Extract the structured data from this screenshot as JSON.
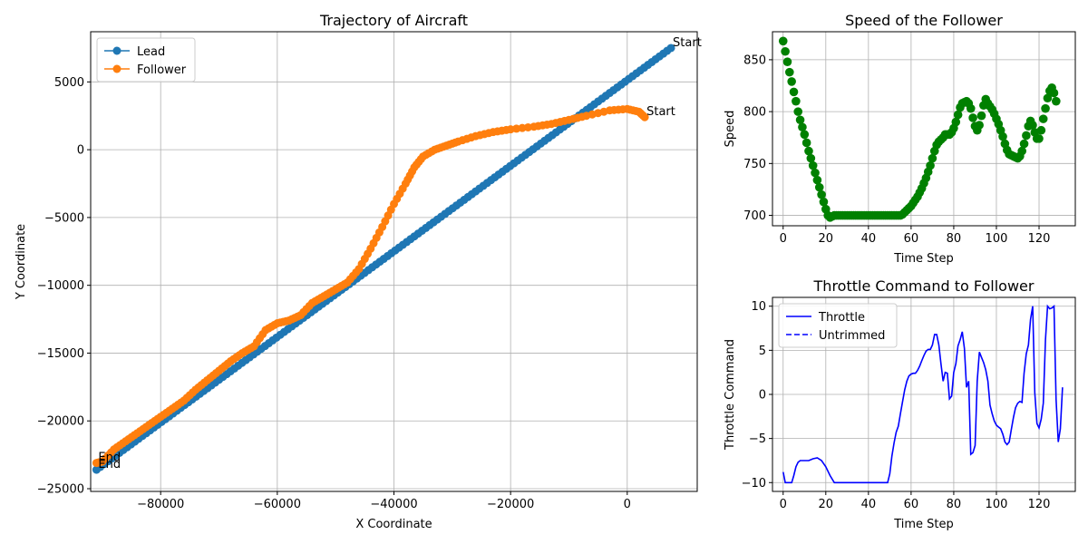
{
  "chart_data": [
    {
      "type": "line",
      "title": "Trajectory of Aircraft",
      "xlabel": "X Coordinate",
      "ylabel": "Y Coordinate",
      "xlim": [
        -92000,
        12000
      ],
      "ylim": [
        -25200,
        8700
      ],
      "x_ticks": [
        -80000,
        -60000,
        -40000,
        -20000,
        0
      ],
      "x_tick_labels": [
        "−80000",
        "−60000",
        "−40000",
        "−20000",
        "0"
      ],
      "y_ticks": [
        -25000,
        -20000,
        -15000,
        -10000,
        -5000,
        0,
        5000
      ],
      "y_tick_labels": [
        "−25000",
        "−20000",
        "−15000",
        "−10000",
        "−5000",
        "0",
        "5000"
      ],
      "grid": true,
      "legend": "top-left",
      "series": [
        {
          "name": "Lead",
          "color": "#1f77b4",
          "marker": "circle",
          "points": [
            [
              7500,
              7500
            ],
            [
              -91000,
              -23600
            ]
          ]
        },
        {
          "name": "Follower",
          "color": "#ff7f0e",
          "marker": "circle",
          "points": [
            [
              3000,
              2400
            ],
            [
              2000,
              2800
            ],
            [
              0,
              3000
            ],
            [
              -3000,
              2900
            ],
            [
              -7000,
              2500
            ],
            [
              -10000,
              2200
            ],
            [
              -13000,
              1900
            ],
            [
              -16000,
              1700
            ],
            [
              -20000,
              1500
            ],
            [
              -23000,
              1300
            ],
            [
              -26000,
              1000
            ],
            [
              -29000,
              600
            ],
            [
              -31000,
              300
            ],
            [
              -33000,
              0
            ],
            [
              -35000,
              -500
            ],
            [
              -36500,
              -1300
            ],
            [
              -38000,
              -2500
            ],
            [
              -40000,
              -4000
            ],
            [
              -42000,
              -5700
            ],
            [
              -44000,
              -7300
            ],
            [
              -46000,
              -8800
            ],
            [
              -48000,
              -9800
            ],
            [
              -50000,
              -10300
            ],
            [
              -52000,
              -10800
            ],
            [
              -54000,
              -11300
            ],
            [
              -56000,
              -12200
            ],
            [
              -58000,
              -12600
            ],
            [
              -60000,
              -12800
            ],
            [
              -62000,
              -13300
            ],
            [
              -64000,
              -14500
            ],
            [
              -66000,
              -15000
            ],
            [
              -68000,
              -15600
            ],
            [
              -70000,
              -16300
            ],
            [
              -72000,
              -17000
            ],
            [
              -74000,
              -17700
            ],
            [
              -76000,
              -18500
            ],
            [
              -78000,
              -19100
            ],
            [
              -80000,
              -19700
            ],
            [
              -82000,
              -20300
            ],
            [
              -84000,
              -20900
            ],
            [
              -86000,
              -21500
            ],
            [
              -88000,
              -22100
            ],
            [
              -90000,
              -23000
            ],
            [
              -91000,
              -23100
            ]
          ]
        }
      ],
      "annotations": [
        {
          "text": "Start",
          "x": 7500,
          "y": 7500
        },
        {
          "text": "Start",
          "x": 3000,
          "y": 2400
        },
        {
          "text": "End",
          "x": -91000,
          "y": -23100
        },
        {
          "text": "End",
          "x": -91000,
          "y": -23600
        }
      ]
    },
    {
      "type": "scatter",
      "title": "Speed of the Follower",
      "xlabel": "Time Step",
      "ylabel": "Speed",
      "xlim": [
        -5,
        137
      ],
      "ylim": [
        690,
        877
      ],
      "x_ticks": [
        0,
        20,
        40,
        60,
        80,
        100,
        120
      ],
      "y_ticks": [
        700,
        750,
        800,
        850
      ],
      "grid": true,
      "color": "#008000",
      "points": [
        [
          0,
          868
        ],
        [
          1,
          858
        ],
        [
          2,
          848
        ],
        [
          3,
          838
        ],
        [
          4,
          829
        ],
        [
          5,
          819
        ],
        [
          6,
          810
        ],
        [
          7,
          800
        ],
        [
          8,
          792
        ],
        [
          9,
          785
        ],
        [
          10,
          778
        ],
        [
          11,
          770
        ],
        [
          12,
          762
        ],
        [
          13,
          755
        ],
        [
          14,
          748
        ],
        [
          15,
          741
        ],
        [
          16,
          734
        ],
        [
          17,
          727
        ],
        [
          18,
          720
        ],
        [
          19,
          713
        ],
        [
          20,
          706
        ],
        [
          21,
          700
        ],
        [
          22,
          698
        ],
        [
          23,
          699
        ],
        [
          24,
          700
        ],
        [
          25,
          700
        ],
        [
          26,
          700
        ],
        [
          27,
          700
        ],
        [
          28,
          700
        ],
        [
          29,
          700
        ],
        [
          30,
          700
        ],
        [
          31,
          700
        ],
        [
          32,
          700
        ],
        [
          33,
          700
        ],
        [
          34,
          700
        ],
        [
          35,
          700
        ],
        [
          36,
          700
        ],
        [
          37,
          700
        ],
        [
          38,
          700
        ],
        [
          39,
          700
        ],
        [
          40,
          700
        ],
        [
          41,
          700
        ],
        [
          42,
          700
        ],
        [
          43,
          700
        ],
        [
          44,
          700
        ],
        [
          45,
          700
        ],
        [
          46,
          700
        ],
        [
          47,
          700
        ],
        [
          48,
          700
        ],
        [
          49,
          700
        ],
        [
          50,
          700
        ],
        [
          51,
          700
        ],
        [
          52,
          700
        ],
        [
          53,
          700
        ],
        [
          54,
          700
        ],
        [
          55,
          700
        ],
        [
          56,
          701
        ],
        [
          57,
          703
        ],
        [
          58,
          705
        ],
        [
          59,
          707
        ],
        [
          60,
          709
        ],
        [
          61,
          712
        ],
        [
          62,
          715
        ],
        [
          63,
          718
        ],
        [
          64,
          722
        ],
        [
          65,
          726
        ],
        [
          66,
          731
        ],
        [
          67,
          736
        ],
        [
          68,
          742
        ],
        [
          69,
          748
        ],
        [
          70,
          755
        ],
        [
          71,
          762
        ],
        [
          72,
          768
        ],
        [
          73,
          771
        ],
        [
          74,
          773
        ],
        [
          75,
          775
        ],
        [
          76,
          778
        ],
        [
          77,
          778
        ],
        [
          78,
          778
        ],
        [
          79,
          780
        ],
        [
          80,
          784
        ],
        [
          81,
          790
        ],
        [
          82,
          797
        ],
        [
          83,
          804
        ],
        [
          84,
          808
        ],
        [
          85,
          809
        ],
        [
          86,
          810
        ],
        [
          87,
          808
        ],
        [
          88,
          803
        ],
        [
          89,
          794
        ],
        [
          90,
          786
        ],
        [
          91,
          782
        ],
        [
          92,
          787
        ],
        [
          93,
          796
        ],
        [
          94,
          806
        ],
        [
          95,
          812
        ],
        [
          96,
          808
        ],
        [
          97,
          805
        ],
        [
          98,
          802
        ],
        [
          99,
          798
        ],
        [
          100,
          793
        ],
        [
          101,
          788
        ],
        [
          102,
          782
        ],
        [
          103,
          776
        ],
        [
          104,
          769
        ],
        [
          105,
          763
        ],
        [
          106,
          759
        ],
        [
          107,
          758
        ],
        [
          108,
          757
        ],
        [
          109,
          756
        ],
        [
          110,
          755
        ],
        [
          111,
          757
        ],
        [
          112,
          762
        ],
        [
          113,
          769
        ],
        [
          114,
          777
        ],
        [
          115,
          786
        ],
        [
          116,
          791
        ],
        [
          117,
          787
        ],
        [
          118,
          780
        ],
        [
          119,
          774
        ],
        [
          120,
          774
        ],
        [
          121,
          782
        ],
        [
          122,
          793
        ],
        [
          123,
          803
        ],
        [
          124,
          813
        ],
        [
          125,
          820
        ],
        [
          126,
          823
        ],
        [
          127,
          818
        ],
        [
          128,
          810
        ]
      ]
    },
    {
      "type": "line",
      "title": "Throttle Command to Follower",
      "xlabel": "Time Step",
      "ylabel": "Throttle Command",
      "xlim": [
        -5,
        137
      ],
      "ylim": [
        -11,
        11
      ],
      "x_ticks": [
        0,
        20,
        40,
        60,
        80,
        100,
        120
      ],
      "y_ticks": [
        -10,
        -5,
        0,
        5,
        10
      ],
      "y_tick_labels": [
        "−10",
        "−5",
        "0",
        "5",
        "10"
      ],
      "grid": true,
      "legend": "top-left",
      "series": [
        {
          "name": "Throttle",
          "color": "#0000ff",
          "style": "solid",
          "points": [
            [
              0,
              -8.8
            ],
            [
              1,
              -10
            ],
            [
              2,
              -10
            ],
            [
              3,
              -10
            ],
            [
              4,
              -10
            ],
            [
              5,
              -9.2
            ],
            [
              6,
              -8.2
            ],
            [
              7,
              -7.7
            ],
            [
              8,
              -7.5
            ],
            [
              10,
              -7.5
            ],
            [
              12,
              -7.5
            ],
            [
              14,
              -7.3
            ],
            [
              16,
              -7.2
            ],
            [
              18,
              -7.5
            ],
            [
              20,
              -8.2
            ],
            [
              22,
              -9.2
            ],
            [
              24,
              -10
            ],
            [
              26,
              -10
            ],
            [
              30,
              -10
            ],
            [
              35,
              -10
            ],
            [
              40,
              -10
            ],
            [
              45,
              -10
            ],
            [
              49,
              -10
            ],
            [
              50,
              -9
            ],
            [
              51,
              -7
            ],
            [
              52,
              -5.5
            ],
            [
              53,
              -4.3
            ],
            [
              54,
              -3.6
            ],
            [
              55,
              -2.2
            ],
            [
              56,
              -0.8
            ],
            [
              57,
              0.5
            ],
            [
              58,
              1.5
            ],
            [
              59,
              2.1
            ],
            [
              60,
              2.3
            ],
            [
              61,
              2.4
            ],
            [
              62,
              2.4
            ],
            [
              63,
              2.7
            ],
            [
              64,
              3.2
            ],
            [
              65,
              3.8
            ],
            [
              66,
              4.4
            ],
            [
              67,
              4.9
            ],
            [
              68,
              5.1
            ],
            [
              69,
              5.1
            ],
            [
              70,
              5.6
            ],
            [
              71,
              6.8
            ],
            [
              72,
              6.8
            ],
            [
              73,
              5.6
            ],
            [
              74,
              3.5
            ],
            [
              75,
              1.5
            ],
            [
              76,
              2.5
            ],
            [
              77,
              2.4
            ],
            [
              78,
              -0.5
            ],
            [
              79,
              -0.2
            ],
            [
              80,
              2.5
            ],
            [
              81,
              3.5
            ],
            [
              82,
              5.5
            ],
            [
              83,
              6.2
            ],
            [
              84,
              7.1
            ],
            [
              85,
              5.2
            ],
            [
              86,
              0.8
            ],
            [
              87,
              1.5
            ],
            [
              88,
              -6.8
            ],
            [
              89,
              -6.6
            ],
            [
              90,
              -5.8
            ],
            [
              91,
              1.5
            ],
            [
              92,
              4.8
            ],
            [
              93,
              4.2
            ],
            [
              94,
              3.6
            ],
            [
              95,
              2.8
            ],
            [
              96,
              1.5
            ],
            [
              97,
              -1.2
            ],
            [
              98,
              -2.2
            ],
            [
              99,
              -3.0
            ],
            [
              100,
              -3.5
            ],
            [
              101,
              -3.7
            ],
            [
              102,
              -3.9
            ],
            [
              103,
              -4.5
            ],
            [
              104,
              -5.4
            ],
            [
              105,
              -5.7
            ],
            [
              106,
              -5.4
            ],
            [
              107,
              -4.0
            ],
            [
              108,
              -2.6
            ],
            [
              109,
              -1.5
            ],
            [
              110,
              -1.0
            ],
            [
              111,
              -0.8
            ],
            [
              112,
              -0.9
            ],
            [
              113,
              2.4
            ],
            [
              114,
              4.6
            ],
            [
              115,
              5.6
            ],
            [
              116,
              8.5
            ],
            [
              117,
              10
            ],
            [
              118,
              0.2
            ],
            [
              119,
              -3.3
            ],
            [
              120,
              -3.8
            ],
            [
              121,
              -2.8
            ],
            [
              122,
              -1.0
            ],
            [
              123,
              6.2
            ],
            [
              124,
              10
            ],
            [
              125,
              9.7
            ],
            [
              126,
              9.8
            ],
            [
              127,
              10
            ],
            [
              128,
              -0.6
            ],
            [
              129,
              -5.4
            ],
            [
              130,
              -3.9
            ],
            [
              131,
              0.8
            ]
          ]
        },
        {
          "name": "Untrimmed",
          "color": "#0000ff",
          "style": "dashed",
          "points": []
        }
      ]
    }
  ]
}
